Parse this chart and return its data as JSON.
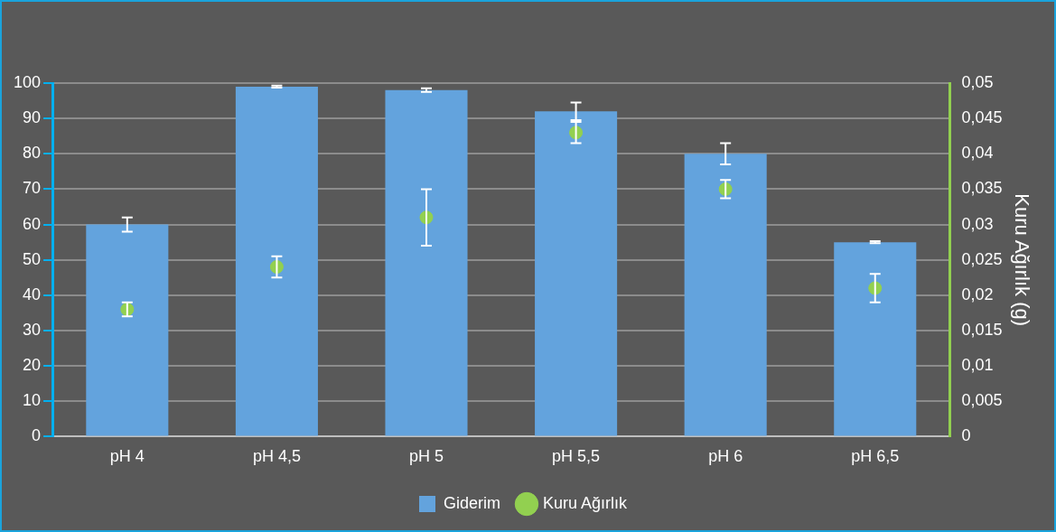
{
  "chart_data": {
    "type": "bar",
    "categories": [
      "pH 4",
      "pH 4,5",
      "pH 5",
      "pH 5,5",
      "pH 6",
      "pH 6,5"
    ],
    "series": [
      {
        "name": "Giderim",
        "color": "#63a3dd",
        "values": [
          60,
          99,
          98,
          92,
          80,
          55
        ],
        "errors": [
          2,
          0.3,
          0.5,
          2.5,
          3,
          0.3
        ]
      },
      {
        "name": "Kuru Ağırlık",
        "type": "scatter",
        "axis": "y2",
        "color": "#92d050",
        "values": [
          0.018,
          0.024,
          0.031,
          0.043,
          0.035,
          0.021
        ],
        "errors": [
          0.001,
          0.0015,
          0.004,
          0.0015,
          0.0013,
          0.002
        ]
      }
    ],
    "ylim": [
      0,
      100
    ],
    "yticks": [
      0,
      10,
      20,
      30,
      40,
      50,
      60,
      70,
      80,
      90,
      100
    ],
    "y2lim": [
      0,
      0.05
    ],
    "y2ticks": [
      {
        "value": 0,
        "label": "0"
      },
      {
        "value": 0.005,
        "label": "0,005"
      },
      {
        "value": 0.01,
        "label": "0,01"
      },
      {
        "value": 0.015,
        "label": "0,015"
      },
      {
        "value": 0.02,
        "label": "0,02"
      },
      {
        "value": 0.025,
        "label": "0,025"
      },
      {
        "value": 0.03,
        "label": "0,03"
      },
      {
        "value": 0.035,
        "label": "0,035"
      },
      {
        "value": 0.04,
        "label": "0,04"
      },
      {
        "value": 0.045,
        "label": "0,045"
      },
      {
        "value": 0.05,
        "label": "0,05"
      }
    ],
    "y2label": "Kuru Ağırlık (g)",
    "grid": "y",
    "legend": "bottom",
    "marker": "circle"
  }
}
